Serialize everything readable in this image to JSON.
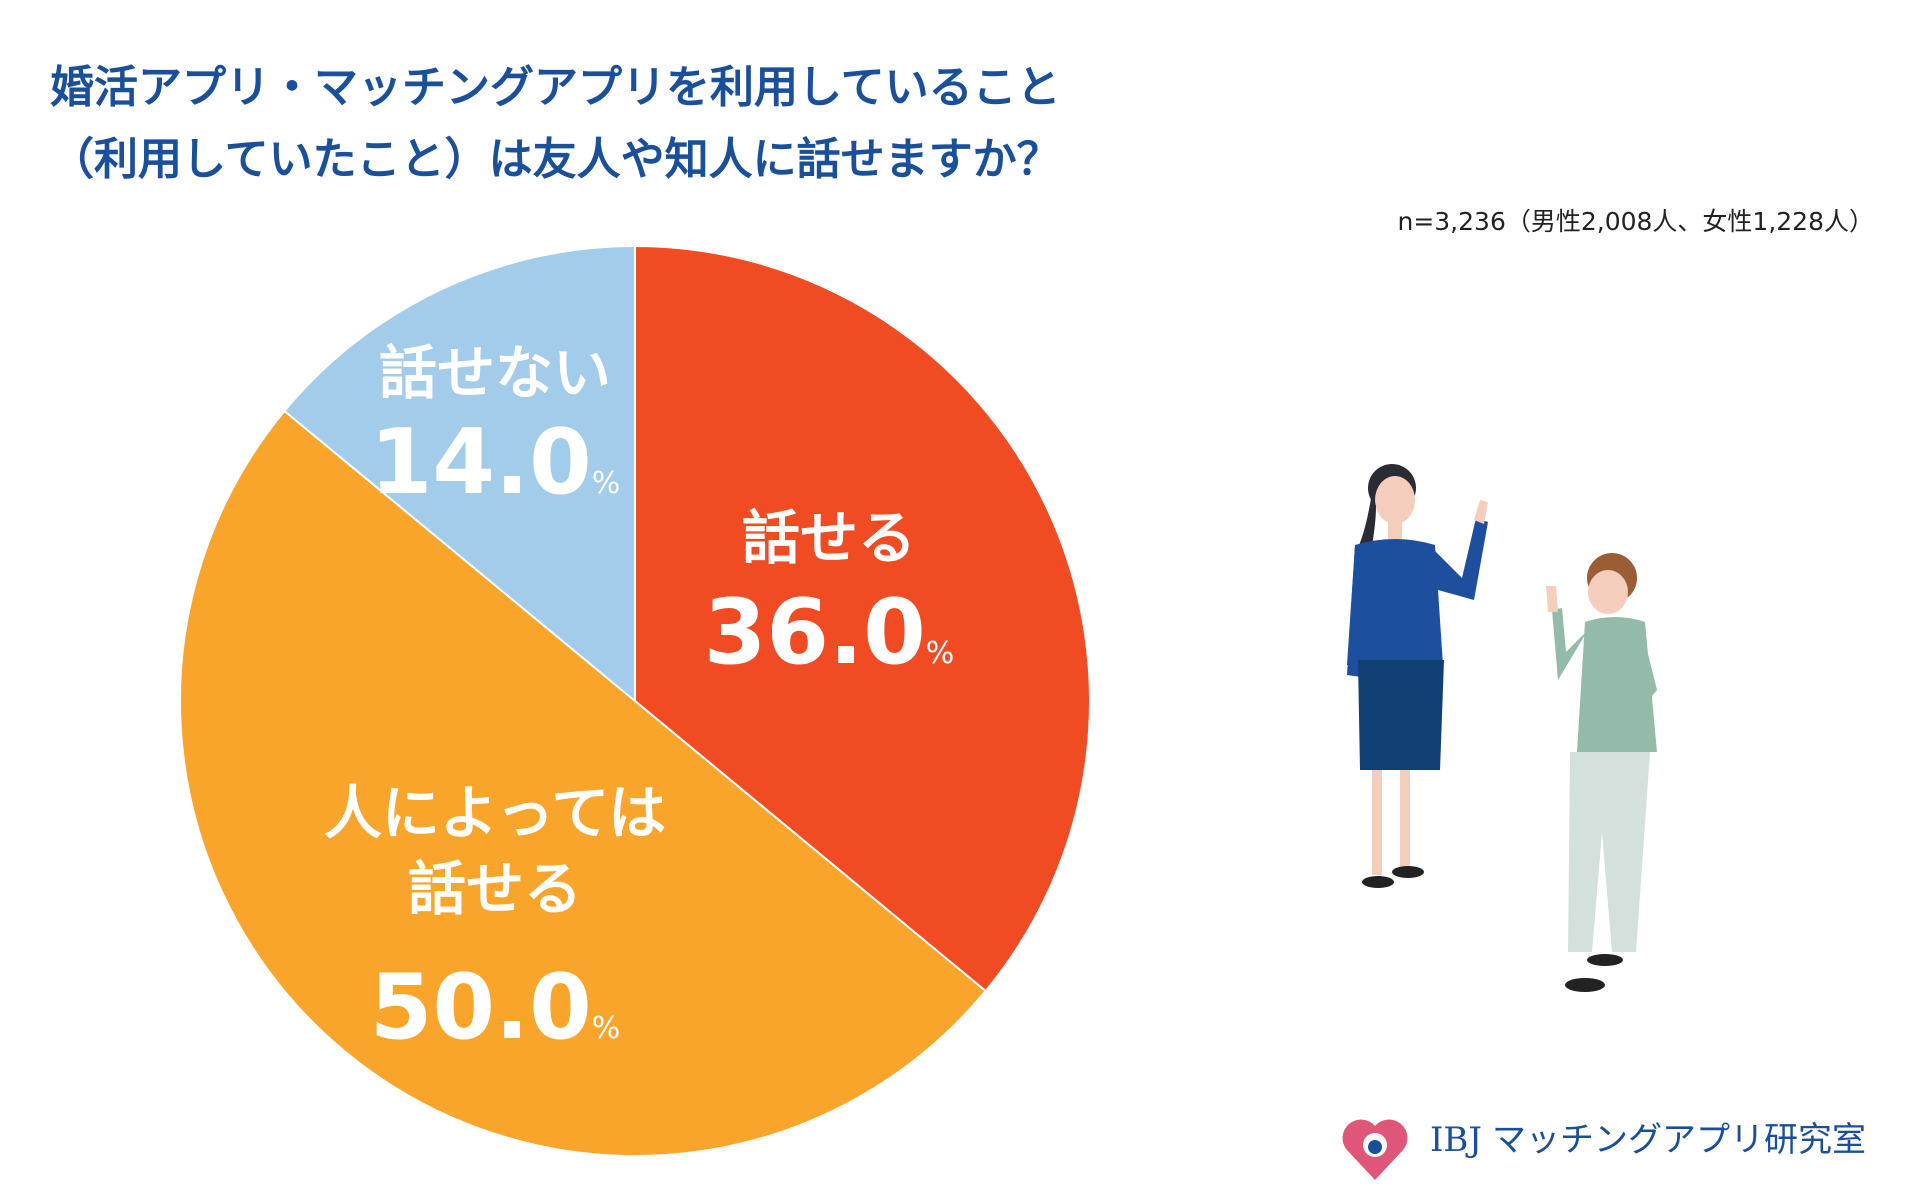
{
  "chart_data": {
    "type": "pie",
    "title": "婚活アプリ・マッチングアプリを利用していること\n（利用していたこと）は友人や知人に話せますか？",
    "subtitle": "n=3,236（男性2,008人、女性1,228人）",
    "categories": [
      "話せる",
      "人によっては\n話せる",
      "話せない"
    ],
    "values": [
      36.0,
      50.0,
      14.0
    ],
    "value_labels": [
      "36.0",
      "50.0",
      "14.0"
    ],
    "value_unit": "%",
    "colors": [
      "#f04b23",
      "#f9a52b",
      "#a3cbea"
    ]
  },
  "logo": {
    "brand": "IBJ",
    "name": "マッチングアプリ研究室"
  }
}
